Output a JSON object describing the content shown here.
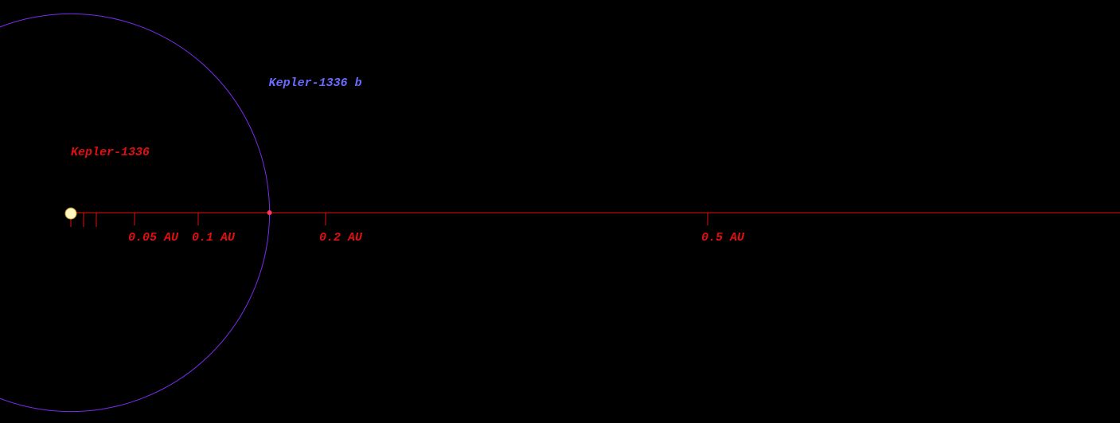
{
  "star": {
    "name": "Kepler-1336"
  },
  "planets": [
    {
      "name": "Kepler-1336 b",
      "orbit_au": 0.156
    }
  ],
  "scale": {
    "ticks": [
      {
        "value": 0.01
      },
      {
        "value": 0.02
      },
      {
        "value": 0.05,
        "label": "0.05 AU"
      },
      {
        "value": 0.1,
        "label": "0.1 AU"
      },
      {
        "value": 0.2,
        "label": "0.2 AU"
      },
      {
        "value": 0.5,
        "label": "0.5 AU"
      }
    ]
  }
}
